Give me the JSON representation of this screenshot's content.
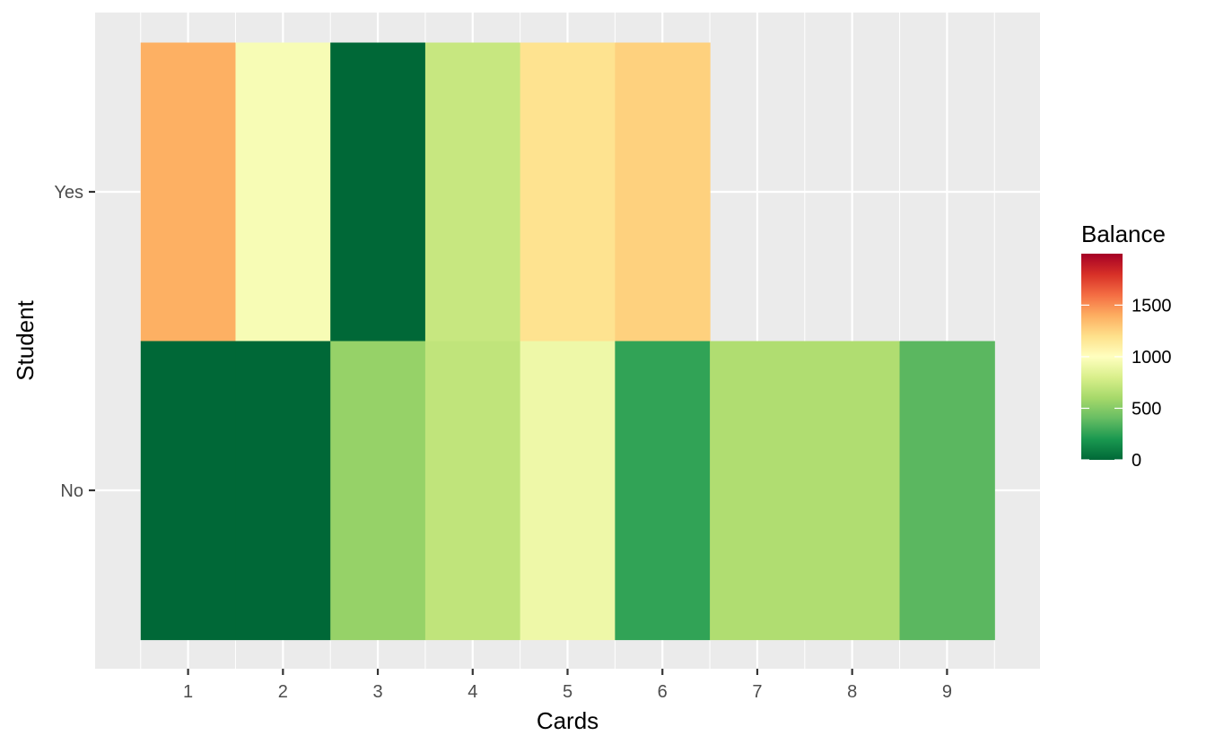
{
  "chart_data": {
    "type": "heatmap",
    "title": "",
    "xlabel": "Cards",
    "ylabel": "Student",
    "x_categories": [
      "1",
      "2",
      "3",
      "4",
      "5",
      "6",
      "7",
      "8",
      "9"
    ],
    "y_categories": [
      "No",
      "Yes"
    ],
    "cells": [
      {
        "x": 1,
        "y": "Yes",
        "value": 1390
      },
      {
        "x": 2,
        "y": "Yes",
        "value": 960
      },
      {
        "x": 3,
        "y": "Yes",
        "value": 0
      },
      {
        "x": 4,
        "y": "Yes",
        "value": 730
      },
      {
        "x": 5,
        "y": "Yes",
        "value": 1180
      },
      {
        "x": 6,
        "y": "Yes",
        "value": 1260
      },
      {
        "x": 1,
        "y": "No",
        "value": 0
      },
      {
        "x": 2,
        "y": "No",
        "value": 0
      },
      {
        "x": 3,
        "y": "No",
        "value": 550
      },
      {
        "x": 4,
        "y": "No",
        "value": 700
      },
      {
        "x": 5,
        "y": "No",
        "value": 910
      },
      {
        "x": 6,
        "y": "No",
        "value": 260
      },
      {
        "x": 7,
        "y": "No",
        "value": 640
      },
      {
        "x": 8,
        "y": "No",
        "value": 640
      },
      {
        "x": 9,
        "y": "No",
        "value": 370
      }
    ],
    "legend": {
      "title": "Balance",
      "position": "right",
      "ticks": [
        0,
        500,
        1000,
        1500
      ],
      "tick_labels": [
        "0",
        "500",
        "1000",
        "1500"
      ],
      "range": [
        0,
        1999
      ]
    },
    "grid": true,
    "colors": {
      "panel_background": "#ebebeb",
      "gridline": "#ffffff",
      "scale": [
        "#006837",
        "#1a9850",
        "#66bd63",
        "#a6d96a",
        "#d9ef8b",
        "#ffffbf",
        "#fee08b",
        "#fdae61",
        "#f46d43",
        "#d73027",
        "#a50026"
      ]
    }
  }
}
